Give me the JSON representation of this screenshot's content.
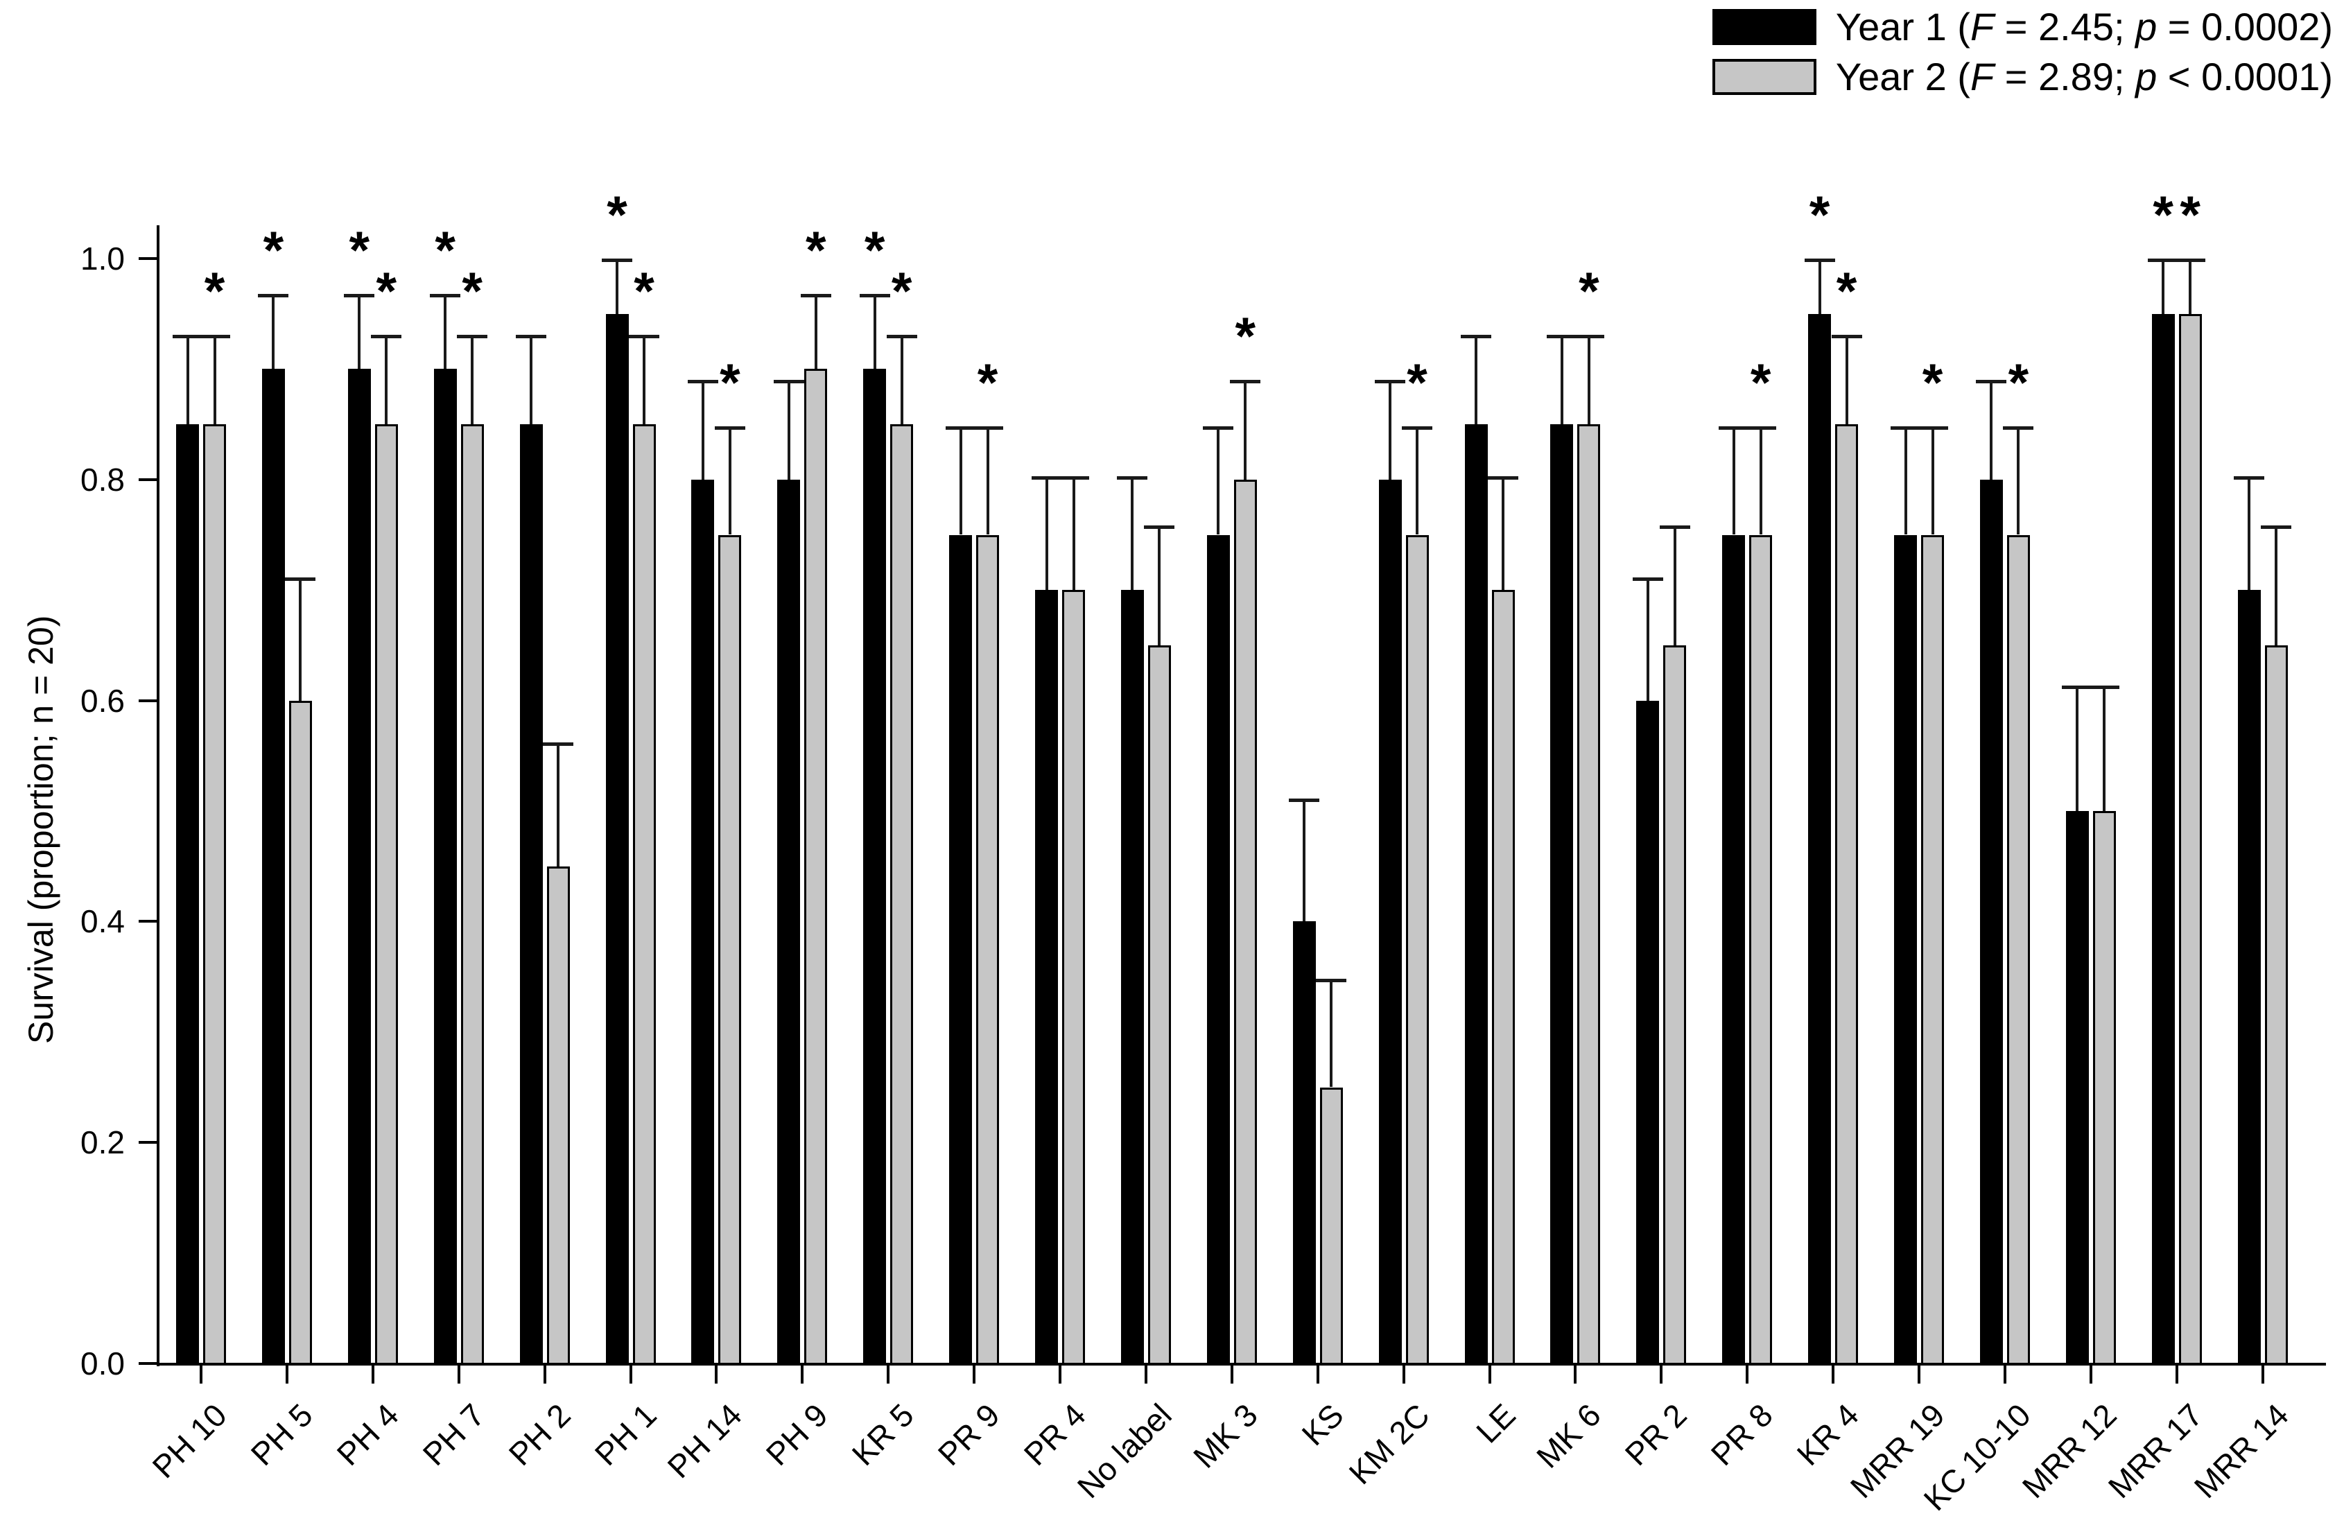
{
  "figure_type": "grouped-bar-chart",
  "sig_marker": "*",
  "legend": [
    {
      "label": "Year 1",
      "f_label": "F",
      "f_op": "=",
      "f_value": "2.45",
      "p_label": "p",
      "p_op": "=",
      "p_value": "0.0002",
      "swatch_color": "#000000"
    },
    {
      "label": "Year 2",
      "f_label": "F",
      "f_op": "=",
      "f_value": "2.89",
      "p_label": "p",
      "p_op": "<",
      "p_value": "0.0001",
      "swatch_color": "#c6c6c6"
    }
  ],
  "y_axis": {
    "title": "Survival (proportion; n = 20)",
    "tick_labels": [
      "0.0",
      "0.2",
      "0.4",
      "0.6",
      "0.8",
      "1.0"
    ]
  },
  "chart_data": {
    "type": "bar",
    "title": "",
    "xlabel": "",
    "ylabel": "Survival (proportion; n = 20)",
    "ylim": [
      0.0,
      1.05
    ],
    "grid": false,
    "legend_position": "top-right",
    "error_bars": "upper-only, cap at top",
    "categories": [
      "PH 10",
      "PH 5",
      "PH 4",
      "PH 7",
      "PH 2",
      "PH 1",
      "PH 14",
      "PH 9",
      "KR 5",
      "PR 9",
      "PR 4",
      "No label",
      "MK 3",
      "KS",
      "KM 2C",
      "LE",
      "MK 6",
      "PR 2",
      "PR 8",
      "KR 4",
      "MRR 19",
      "KC 10-10",
      "MRR 12",
      "MRR 17",
      "MRR 14"
    ],
    "series": [
      {
        "name": "Year 1",
        "color": "#000000",
        "values": [
          0.85,
          0.9,
          0.9,
          0.9,
          0.85,
          0.95,
          0.8,
          0.8,
          0.9,
          0.75,
          0.7,
          0.7,
          0.75,
          0.4,
          0.8,
          0.85,
          0.85,
          0.6,
          0.75,
          0.95,
          0.75,
          0.8,
          0.5,
          0.95,
          0.7
        ],
        "errors": [
          0.08,
          0.067,
          0.067,
          0.067,
          0.08,
          0.049,
          0.089,
          0.089,
          0.067,
          0.097,
          0.102,
          0.102,
          0.097,
          0.11,
          0.089,
          0.08,
          0.08,
          0.11,
          0.097,
          0.049,
          0.097,
          0.089,
          0.112,
          0.049,
          0.102
        ],
        "significant": [
          false,
          true,
          true,
          true,
          false,
          true,
          false,
          false,
          true,
          false,
          false,
          false,
          false,
          false,
          false,
          false,
          false,
          false,
          false,
          true,
          false,
          false,
          false,
          true,
          false
        ]
      },
      {
        "name": "Year 2",
        "color": "#c6c6c6",
        "values": [
          0.85,
          0.6,
          0.85,
          0.85,
          0.45,
          0.85,
          0.75,
          0.9,
          0.85,
          0.75,
          0.7,
          0.65,
          0.8,
          0.25,
          0.75,
          0.7,
          0.85,
          0.65,
          0.75,
          0.85,
          0.75,
          0.75,
          0.5,
          0.95,
          0.65
        ],
        "errors": [
          0.08,
          0.11,
          0.08,
          0.08,
          0.111,
          0.08,
          0.097,
          0.067,
          0.08,
          0.097,
          0.102,
          0.107,
          0.089,
          0.097,
          0.097,
          0.102,
          0.08,
          0.107,
          0.097,
          0.08,
          0.097,
          0.097,
          0.112,
          0.049,
          0.107
        ],
        "significant": [
          true,
          false,
          true,
          true,
          false,
          true,
          true,
          true,
          true,
          true,
          false,
          false,
          true,
          false,
          true,
          false,
          true,
          false,
          true,
          true,
          true,
          true,
          false,
          true,
          false
        ]
      }
    ]
  }
}
